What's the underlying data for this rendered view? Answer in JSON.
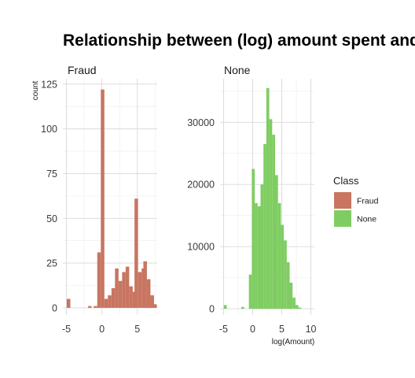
{
  "chart_data": {
    "type": "bar",
    "title": "Relationship between (log) amount spent and fraud",
    "ylabel": "count",
    "xlabel": "log(Amount)",
    "legend": {
      "title": "Class",
      "position": "right",
      "entries": [
        {
          "label": "Fraud",
          "color": "#c87561"
        },
        {
          "label": "None",
          "color": "#7fcd62"
        }
      ]
    },
    "grid": true,
    "panels": [
      {
        "name": "Fraud",
        "color": "#c87561",
        "xlim": [
          -5.5,
          7.8
        ],
        "ylim": [
          -4,
          128
        ],
        "xticks": [
          -5,
          0,
          5
        ],
        "yticks": [
          0,
          25,
          50,
          75,
          100,
          125
        ],
        "bars": [
          {
            "x": -4.7,
            "y": 5
          },
          {
            "x": -1.7,
            "y": 1
          },
          {
            "x": -0.9,
            "y": 1
          },
          {
            "x": -0.4,
            "y": 31
          },
          {
            "x": 0.1,
            "y": 122
          },
          {
            "x": 0.6,
            "y": 5
          },
          {
            "x": 1.1,
            "y": 7
          },
          {
            "x": 1.6,
            "y": 11
          },
          {
            "x": 2.1,
            "y": 22
          },
          {
            "x": 2.6,
            "y": 15
          },
          {
            "x": 3.1,
            "y": 20
          },
          {
            "x": 3.6,
            "y": 23
          },
          {
            "x": 4.1,
            "y": 12
          },
          {
            "x": 4.6,
            "y": 9
          },
          {
            "x": 4.85,
            "y": 61
          },
          {
            "x": 5.35,
            "y": 20
          },
          {
            "x": 5.85,
            "y": 22
          },
          {
            "x": 6.1,
            "y": 26
          },
          {
            "x": 6.6,
            "y": 16
          },
          {
            "x": 7.1,
            "y": 7
          },
          {
            "x": 7.5,
            "y": 2
          }
        ]
      },
      {
        "name": "None",
        "color": "#7fcd62",
        "xlim": [
          -5.6,
          10.6
        ],
        "ylim": [
          -1000,
          37000
        ],
        "xticks": [
          -5,
          0,
          5,
          10
        ],
        "yticks": [
          0,
          10000,
          20000,
          30000
        ],
        "bars": [
          {
            "x": -4.7,
            "y": 600
          },
          {
            "x": -1.7,
            "y": 300
          },
          {
            "x": -0.4,
            "y": 5500
          },
          {
            "x": 0.1,
            "y": 22500
          },
          {
            "x": 0.6,
            "y": 17000
          },
          {
            "x": 1.1,
            "y": 16500
          },
          {
            "x": 1.6,
            "y": 20000
          },
          {
            "x": 2.1,
            "y": 26500
          },
          {
            "x": 2.6,
            "y": 35500
          },
          {
            "x": 3.1,
            "y": 30500
          },
          {
            "x": 3.6,
            "y": 28000
          },
          {
            "x": 4.1,
            "y": 21500
          },
          {
            "x": 4.6,
            "y": 17000
          },
          {
            "x": 5.1,
            "y": 13500
          },
          {
            "x": 5.6,
            "y": 11000
          },
          {
            "x": 6.1,
            "y": 7500
          },
          {
            "x": 6.6,
            "y": 4200
          },
          {
            "x": 7.1,
            "y": 1800
          },
          {
            "x": 7.6,
            "y": 600
          },
          {
            "x": 8.1,
            "y": 200
          }
        ]
      }
    ]
  }
}
